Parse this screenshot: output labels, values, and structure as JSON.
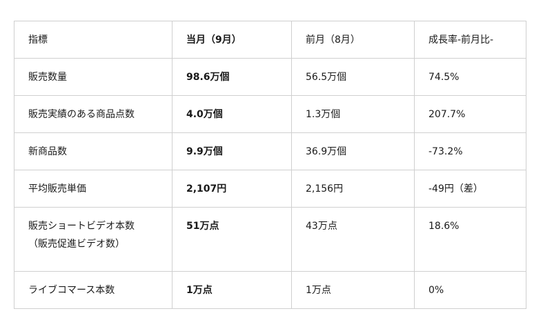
{
  "table": {
    "headers": [
      "指標",
      "当月（9月）",
      "前月（8月）",
      "成長率-前月比-"
    ],
    "rows": [
      [
        "販売数量",
        "98.6万個",
        "56.5万個",
        "74.5%"
      ],
      [
        "販売実績のある商品点数",
        "4.0万個",
        "1.3万個",
        "207.7%"
      ],
      [
        "新商品数",
        "9.9万個",
        "36.9万個",
        "-73.2%"
      ],
      [
        "平均販売単価",
        "2,107円",
        "2,156円",
        "-49円（差）"
      ],
      [
        "販売ショートビデオ本数\n（販売促進ビデオ数）",
        "51万点",
        "43万点",
        "18.6%"
      ],
      [
        "ライブコマース本数",
        "1万点",
        "1万点",
        "0%"
      ]
    ]
  }
}
